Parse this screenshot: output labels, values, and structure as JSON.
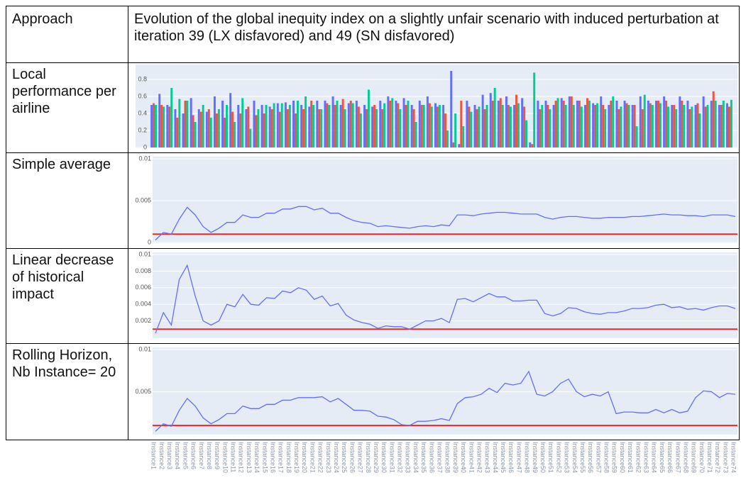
{
  "table": {
    "header": [
      "Approach",
      "Evolution of the global inequity index on a slightly unfair scenario with induced perturbation at iteration 39 (LX disfavored) and 49 (SN disfavored)"
    ],
    "row_labels": [
      "Local performance per airline",
      "Simple average",
      "Linear decrease of historical impact",
      "Rolling Horizon, Nb Instance= 20"
    ]
  },
  "chart_data": [
    {
      "type": "bar",
      "ylim": [
        0,
        0.95
      ],
      "yticks": [
        0,
        0.2,
        0.4,
        0.6,
        0.8
      ],
      "grid": true,
      "series": [
        {
          "color": "#636efa",
          "values": [
            0.5,
            0.63,
            0.5,
            0.45,
            0.4,
            0.58,
            0.45,
            0.42,
            0.6,
            0.55,
            0.64,
            0.5,
            0.45,
            0.55,
            0.5,
            0.48,
            0.52,
            0.53,
            0.55,
            0.5,
            0.48,
            0.55,
            0.55,
            0.6,
            0.5,
            0.52,
            0.55,
            0.5,
            0.48,
            0.55,
            0.6,
            0.55,
            0.58,
            0.5,
            0.55,
            0.6,
            0.52,
            0.5,
            0.9,
            0.04,
            0.55,
            0.5,
            0.62,
            0.64,
            0.55,
            0.6,
            0.5,
            0.58,
            0.06,
            0.55,
            0.55,
            0.5,
            0.58,
            0.6,
            0.55,
            0.5,
            0.52,
            0.6,
            0.5,
            0.55,
            0.55,
            0.5,
            0.6,
            0.55,
            0.55,
            0.6,
            0.5,
            0.6,
            0.55,
            0.5,
            0.6,
            0.55,
            0.5,
            0.52
          ]
        },
        {
          "color": "#ef553b",
          "values": [
            0.52,
            0.5,
            0.48,
            0.35,
            0.55,
            0.38,
            0.42,
            0.45,
            0.4,
            0.35,
            0.42,
            0.4,
            0.48,
            0.38,
            0.4,
            0.45,
            0.42,
            0.45,
            0.4,
            0.45,
            0.55,
            0.45,
            0.52,
            0.5,
            0.57,
            0.55,
            0.48,
            0.45,
            0.5,
            0.45,
            0.55,
            0.52,
            0.5,
            0.45,
            0.5,
            0.52,
            0.48,
            0.4,
            0.06,
            0.55,
            0.48,
            0.45,
            0.45,
            0.55,
            0.58,
            0.5,
            0.62,
            0.48,
            0.04,
            0.45,
            0.5,
            0.55,
            0.55,
            0.6,
            0.55,
            0.58,
            0.5,
            0.5,
            0.55,
            0.45,
            0.52,
            0.5,
            0.45,
            0.52,
            0.55,
            0.55,
            0.5,
            0.55,
            0.45,
            0.52,
            0.48,
            0.66,
            0.5,
            0.48
          ]
        },
        {
          "color": "#00cc96",
          "values": [
            0.5,
            0.48,
            0.7,
            0.57,
            0.55,
            0.3,
            0.5,
            0.35,
            0.45,
            0.5,
            0.3,
            0.58,
            0.22,
            0.45,
            0.5,
            0.52,
            0.52,
            0.5,
            0.55,
            0.6,
            0.5,
            0.45,
            0.5,
            0.55,
            0.45,
            0.52,
            0.4,
            0.68,
            0.45,
            0.52,
            0.58,
            0.45,
            0.55,
            0.3,
            0.5,
            0.48,
            0.5,
            0.2,
            0.4,
            0.25,
            0.42,
            0.48,
            0.5,
            0.7,
            0.5,
            0.48,
            0.52,
            0.32,
            0.88,
            0.5,
            0.45,
            0.58,
            0.5,
            0.5,
            0.48,
            0.55,
            0.52,
            0.45,
            0.6,
            0.48,
            0.5,
            0.25,
            0.62,
            0.5,
            0.52,
            0.48,
            0.45,
            0.5,
            0.48,
            0.4,
            0.5,
            0.55,
            0.55,
            0.56
          ]
        }
      ]
    },
    {
      "type": "line",
      "ylim": [
        0,
        0.01
      ],
      "yticks": [
        0,
        0.005,
        0.01
      ],
      "grid": true,
      "threshold": 0.001,
      "threshold_color": "#e8292b",
      "series": [
        {
          "color": "#636efa",
          "values": [
            0.0003,
            0.0012,
            0.001,
            0.0028,
            0.0042,
            0.0033,
            0.0019,
            0.0012,
            0.0017,
            0.0024,
            0.0024,
            0.0033,
            0.003,
            0.003,
            0.0035,
            0.0035,
            0.004,
            0.004,
            0.0043,
            0.0043,
            0.0039,
            0.0041,
            0.0035,
            0.0035,
            0.003,
            0.0026,
            0.0024,
            0.0023,
            0.0019,
            0.002,
            0.0019,
            0.0018,
            0.0017,
            0.0019,
            0.002,
            0.0019,
            0.0021,
            0.002,
            0.0033,
            0.0033,
            0.0032,
            0.0034,
            0.0035,
            0.0036,
            0.0036,
            0.0035,
            0.0034,
            0.0034,
            0.0034,
            0.003,
            0.0028,
            0.003,
            0.0031,
            0.0031,
            0.003,
            0.0029,
            0.0029,
            0.003,
            0.003,
            0.003,
            0.0031,
            0.0031,
            0.0032,
            0.0033,
            0.0034,
            0.0033,
            0.0033,
            0.0032,
            0.0032,
            0.0031,
            0.0033,
            0.0033,
            0.0033,
            0.0031
          ]
        }
      ]
    },
    {
      "type": "line",
      "ylim": [
        0,
        0.01
      ],
      "yticks": [
        0.002,
        0.004,
        0.006,
        0.008,
        0.01
      ],
      "grid": true,
      "threshold": 0.001,
      "threshold_color": "#e8292b",
      "series": [
        {
          "color": "#636efa",
          "values": [
            0.0005,
            0.003,
            0.0015,
            0.007,
            0.0087,
            0.005,
            0.002,
            0.0015,
            0.002,
            0.004,
            0.0037,
            0.0052,
            0.004,
            0.0039,
            0.0048,
            0.0047,
            0.0056,
            0.0054,
            0.006,
            0.0057,
            0.0046,
            0.005,
            0.0038,
            0.0041,
            0.0027,
            0.0021,
            0.0018,
            0.0016,
            0.0011,
            0.0014,
            0.0013,
            0.0013,
            0.001,
            0.0015,
            0.002,
            0.002,
            0.0023,
            0.0018,
            0.0046,
            0.0047,
            0.0043,
            0.0048,
            0.0053,
            0.0049,
            0.0049,
            0.0044,
            0.0044,
            0.0045,
            0.0045,
            0.0029,
            0.0026,
            0.0029,
            0.0036,
            0.0035,
            0.0031,
            0.0029,
            0.0028,
            0.003,
            0.003,
            0.0032,
            0.0035,
            0.0035,
            0.0036,
            0.0039,
            0.004,
            0.0036,
            0.0037,
            0.0034,
            0.0035,
            0.0033,
            0.0036,
            0.0038,
            0.0038,
            0.0035
          ]
        }
      ]
    },
    {
      "type": "line",
      "ylim": [
        0,
        0.01
      ],
      "yticks": [
        0.005,
        0.01
      ],
      "grid": true,
      "threshold": 0.001,
      "threshold_color": "#e8292b",
      "categories": [
        "Instance1",
        "Instance2",
        "Instance3",
        "Instance4",
        "Instance5",
        "Instance6",
        "Instance7",
        "Instance8",
        "Instance9",
        "Instance10",
        "Instance11",
        "Instance12",
        "Instance13",
        "Instance14",
        "Instance15",
        "Instance16",
        "Instance17",
        "Instance18",
        "Instance19",
        "Instance20",
        "Instance21",
        "Instance22",
        "Instance23",
        "Instance24",
        "Instance25",
        "Instance26",
        "Instance27",
        "Instance28",
        "Instance29",
        "Instance30",
        "Instance31",
        "Instance32",
        "Instance33",
        "Instance34",
        "Instance35",
        "Instance36",
        "Instance37",
        "Instance38",
        "Instance39",
        "Instance40",
        "Instance41",
        "Instance42",
        "Instance43",
        "Instance44",
        "Instance45",
        "Instance46",
        "Instance47",
        "Instance48",
        "Instance49",
        "Instance50",
        "Instance51",
        "Instance52",
        "Instance53",
        "Instance54",
        "Instance55",
        "Instance56",
        "Instance57",
        "Instance58",
        "Instance59",
        "Instance60",
        "Instance61",
        "Instance62",
        "Instance63",
        "Instance64",
        "Instance65",
        "Instance66",
        "Instance67",
        "Instance68",
        "Instance69",
        "Instance70",
        "Instance71",
        "Instance72",
        "Instance73",
        "Instance74"
      ],
      "series": [
        {
          "color": "#636efa",
          "values": [
            0.0003,
            0.0012,
            0.0009,
            0.0028,
            0.0042,
            0.0033,
            0.0019,
            0.0012,
            0.0017,
            0.0024,
            0.0024,
            0.0033,
            0.003,
            0.003,
            0.0035,
            0.0035,
            0.004,
            0.004,
            0.0043,
            0.0043,
            0.0043,
            0.0044,
            0.0038,
            0.0042,
            0.0035,
            0.0028,
            0.0028,
            0.0027,
            0.0021,
            0.002,
            0.0017,
            0.0011,
            0.001,
            0.0015,
            0.0015,
            0.0016,
            0.0018,
            0.0016,
            0.0036,
            0.0043,
            0.0044,
            0.0047,
            0.0054,
            0.0049,
            0.006,
            0.0058,
            0.006,
            0.0074,
            0.0047,
            0.0045,
            0.005,
            0.006,
            0.0065,
            0.005,
            0.0044,
            0.0047,
            0.0045,
            0.005,
            0.0024,
            0.0026,
            0.0026,
            0.0025,
            0.0025,
            0.0029,
            0.0025,
            0.0029,
            0.0025,
            0.0027,
            0.0043,
            0.0051,
            0.005,
            0.0043,
            0.0048,
            0.0047
          ]
        }
      ]
    }
  ]
}
